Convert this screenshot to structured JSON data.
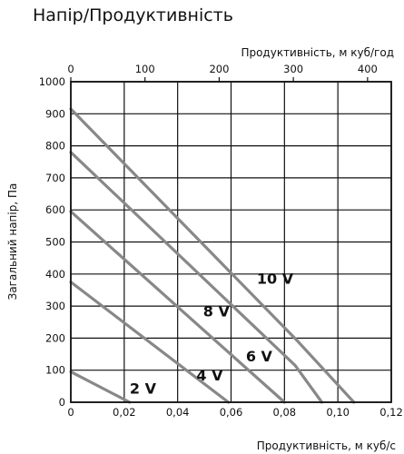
{
  "chart_data": {
    "type": "line",
    "title": "Напір/Продуктивність",
    "xlabel": "Продуктивність, м куб/с",
    "ylabel": "Загальний напір, Па",
    "x2label": "Продуктивність, м куб/год",
    "xlim": [
      0,
      0.12
    ],
    "ylim": [
      0,
      1000
    ],
    "x2lim": [
      0,
      432
    ],
    "xticks": [
      "0",
      "0,02",
      "0,04",
      "0,06",
      "0,08",
      "0,10",
      "0,12"
    ],
    "xtick_values": [
      0,
      0.02,
      0.04,
      0.06,
      0.08,
      0.1,
      0.12
    ],
    "yticks": [
      "0",
      "100",
      "200",
      "300",
      "400",
      "500",
      "600",
      "700",
      "800",
      "900",
      "1000"
    ],
    "ytick_values": [
      0,
      100,
      200,
      300,
      400,
      500,
      600,
      700,
      800,
      900,
      1000
    ],
    "x2ticks": [
      "0",
      "100",
      "200",
      "300",
      "400"
    ],
    "x2tick_values": [
      0,
      100,
      200,
      300,
      400
    ],
    "grid": true,
    "line_color": "#888888",
    "series": [
      {
        "name": "2 V",
        "x": [
          0,
          0.022
        ],
        "y": [
          95,
          0
        ],
        "label_at": [
          0.027,
          27
        ]
      },
      {
        "name": "4 V",
        "x": [
          0,
          0.059
        ],
        "y": [
          375,
          0
        ],
        "label_at": [
          0.052,
          68
        ]
      },
      {
        "name": "6 V",
        "x": [
          0,
          0.08
        ],
        "y": [
          595,
          0
        ],
        "label_at": [
          0.0705,
          127
        ]
      },
      {
        "name": "8 V",
        "x": [
          0,
          0.084,
          0.094
        ],
        "y": [
          780,
          115,
          0
        ],
        "label_at": [
          0.0545,
          267
        ]
      },
      {
        "name": "10 V",
        "x": [
          0,
          0.085,
          0.106
        ],
        "y": [
          915,
          190,
          0
        ],
        "label_at": [
          0.0765,
          370
        ]
      }
    ]
  }
}
